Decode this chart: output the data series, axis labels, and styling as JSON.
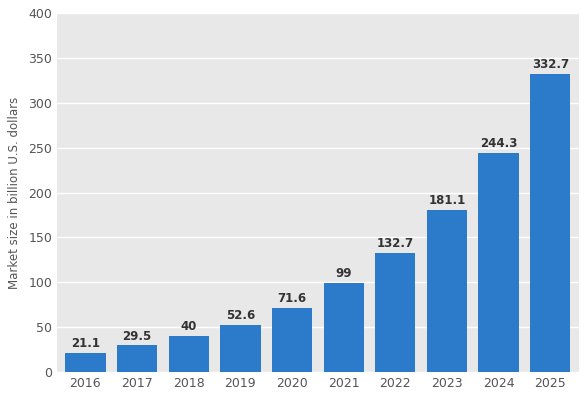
{
  "categories": [
    "2016",
    "2017",
    "2018",
    "2019",
    "2020",
    "2021",
    "2022",
    "2023",
    "2024",
    "2025"
  ],
  "values": [
    21.1,
    29.5,
    40,
    52.6,
    71.6,
    99,
    132.7,
    181.1,
    244.3,
    332.7
  ],
  "bar_color": "#2b7bca",
  "ylabel": "Market size in billion U.S. dollars",
  "ylim": [
    0,
    400
  ],
  "yticks": [
    0,
    50,
    100,
    150,
    200,
    250,
    300,
    350,
    400
  ],
  "figure_bg": "#ffffff",
  "plot_bg": "#e8e8e8",
  "grid_color": "#ffffff",
  "tick_color": "#555555",
  "tick_fontsize": 9,
  "ylabel_fontsize": 8.5,
  "value_label_color": "#333333",
  "value_label_fontsize": 8.5,
  "bar_width": 0.78
}
